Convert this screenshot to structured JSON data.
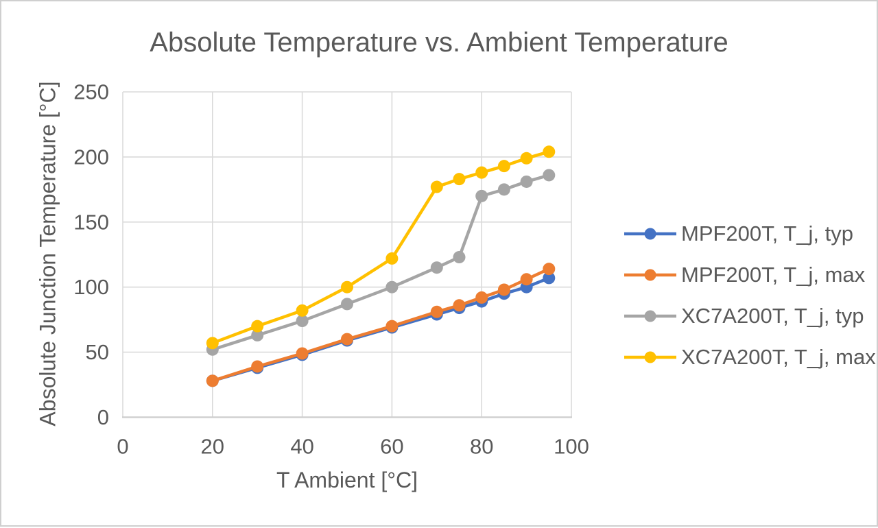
{
  "title": "Absolute Temperature vs. Ambient Temperature",
  "colors": {
    "accent_blue": "#4472C4",
    "accent_orange": "#ED7D31",
    "accent_gray": "#A5A5A5",
    "accent_yellow": "#FFC000",
    "gridline": "#DADADA",
    "axis_line": "#D0D0D0",
    "text": "#595959"
  },
  "chart_data": {
    "type": "line",
    "title": "Absolute Temperature vs. Ambient Temperature",
    "xlabel": "T Ambient [°C]",
    "ylabel": "Absolute Junction Temperature [°C]",
    "xlim": [
      0,
      100
    ],
    "ylim": [
      0,
      250
    ],
    "x_ticks": [
      0,
      20,
      40,
      60,
      80,
      100
    ],
    "y_ticks": [
      0,
      50,
      100,
      150,
      200,
      250
    ],
    "grid": true,
    "legend_position": "right",
    "marker": "circle",
    "x": [
      20,
      30,
      40,
      50,
      60,
      70,
      75,
      80,
      85,
      90,
      95
    ],
    "series": [
      {
        "name": "MPF200T, T_j, typ",
        "color": "#4472C4",
        "values": [
          28,
          38,
          48,
          59,
          69,
          79,
          84,
          89,
          95,
          100,
          107
        ]
      },
      {
        "name": "MPF200T, T_j, max",
        "color": "#ED7D31",
        "values": [
          28,
          39,
          49,
          60,
          70,
          81,
          86,
          92,
          98,
          106,
          114
        ]
      },
      {
        "name": "XC7A200T, T_j, typ",
        "color": "#A5A5A5",
        "values": [
          52,
          63,
          74,
          87,
          100,
          115,
          123,
          170,
          175,
          181,
          186
        ]
      },
      {
        "name": "XC7A200T, T_j, max",
        "color": "#FFC000",
        "values": [
          57,
          70,
          82,
          100,
          122,
          177,
          183,
          188,
          193,
          199,
          204
        ]
      }
    ]
  }
}
